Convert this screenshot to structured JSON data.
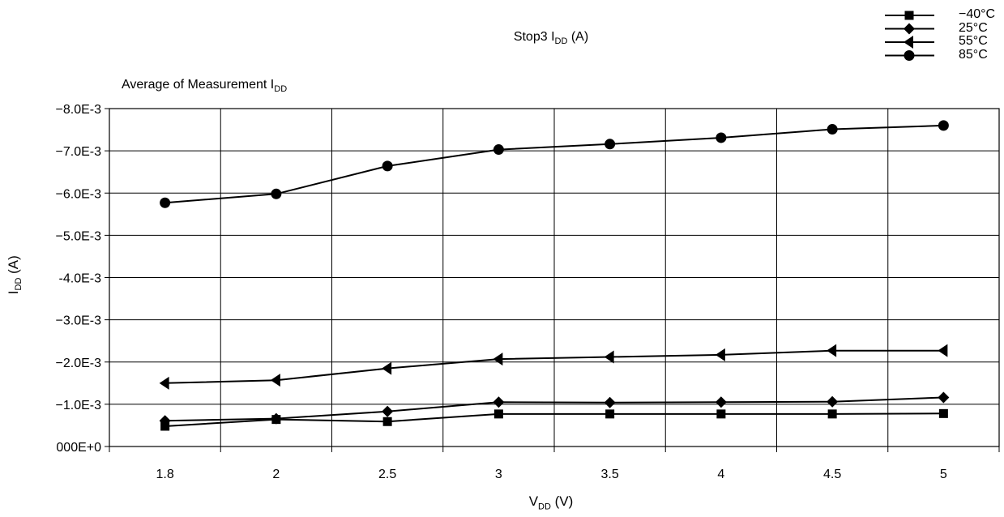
{
  "chart_data": {
    "type": "line",
    "title": {
      "main": "Stop3 I",
      "sub": "DD",
      "suffix": " (A)"
    },
    "subtitle": {
      "main": "Average of Measurement I",
      "sub": "DD"
    },
    "xlabel": {
      "main": "V",
      "sub": "DD",
      "suffix": " (V)"
    },
    "ylabel": {
      "main": "I",
      "sub": "DD",
      "suffix": " (A)"
    },
    "categories": [
      "1.8",
      "2",
      "2.5",
      "3",
      "3.5",
      "4",
      "4.5",
      "5"
    ],
    "y_ticks": [
      "000E+0",
      "−1.0E-3",
      "−2.0E-3",
      "−3.0E-3",
      "-4.0E-3",
      "−5.0E-3",
      "−6.0E-3",
      "−7.0E-3",
      "−8.0E-3"
    ],
    "ylim": [
      0,
      -0.008
    ],
    "grid": true,
    "legend_position": "top-right",
    "series": [
      {
        "name": "−40°C",
        "marker": "square",
        "values": [
          -0.00048,
          -0.00064,
          -0.00059,
          -0.00077,
          -0.00077,
          -0.00077,
          -0.00077,
          -0.00078
        ]
      },
      {
        "name": "25°C",
        "marker": "diamond",
        "values": [
          -0.00061,
          -0.00066,
          -0.00083,
          -0.00105,
          -0.00104,
          -0.00105,
          -0.00106,
          -0.00116
        ]
      },
      {
        "name": "55°C",
        "marker": "triangle-left",
        "values": [
          -0.0015,
          -0.00157,
          -0.00185,
          -0.00207,
          -0.00212,
          -0.00217,
          -0.00227,
          -0.00227
        ]
      },
      {
        "name": "85°C",
        "marker": "circle",
        "values": [
          -0.00577,
          -0.00598,
          -0.00664,
          -0.00703,
          -0.00716,
          -0.00731,
          -0.00751,
          -0.0076
        ]
      }
    ]
  }
}
